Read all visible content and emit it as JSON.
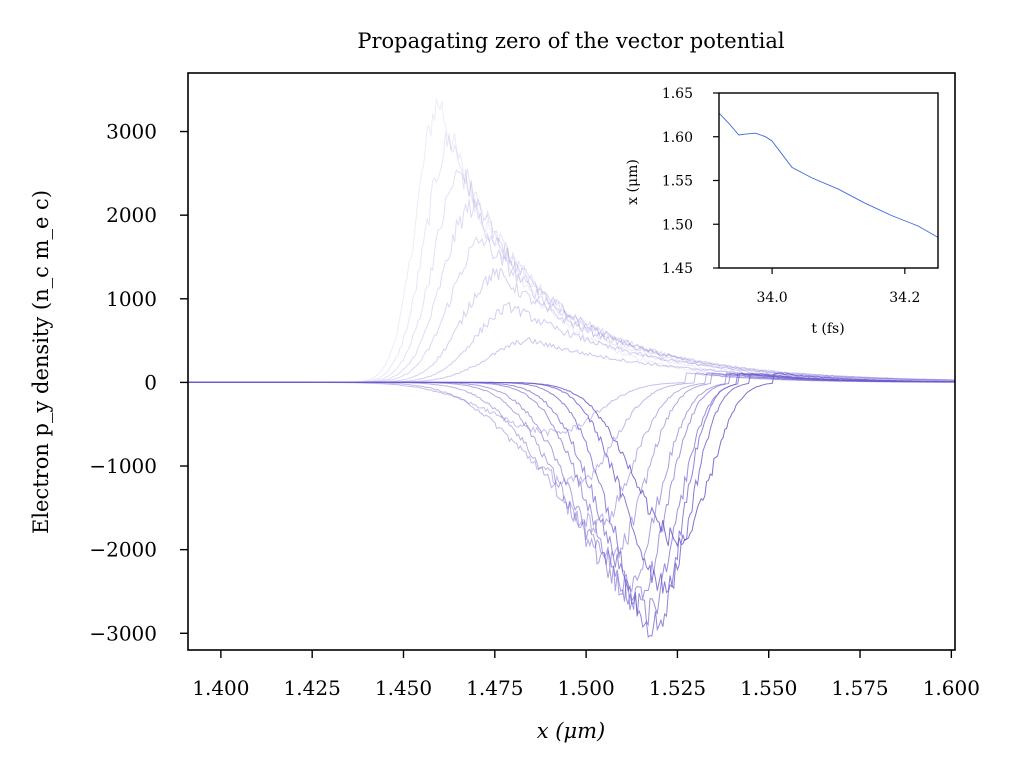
{
  "chart_data": [
    {
      "type": "line",
      "title": "Propagating zero of the vector potential",
      "xlabel": "x (μm)",
      "ylabel": "Electron p_y density (n_c m_e c)",
      "xlim": [
        1.391,
        1.601
      ],
      "ylim": [
        -3200,
        3700
      ],
      "xticks": [
        1.4,
        1.425,
        1.45,
        1.475,
        1.5,
        1.525,
        1.55,
        1.575,
        1.6
      ],
      "xtick_labels": [
        "1.400",
        "1.425",
        "1.450",
        "1.475",
        "1.500",
        "1.525",
        "1.550",
        "1.575",
        "1.600"
      ],
      "yticks": [
        -3000,
        -2000,
        -1000,
        0,
        1000,
        2000,
        3000
      ],
      "ytick_labels": [
        "−3000",
        "−2000",
        "−1000",
        "0",
        "1000",
        "2000",
        "3000"
      ],
      "grid": false,
      "color": "#6a5acd",
      "series_count": 18,
      "series": [
        {
          "peak_x": 1.46,
          "peak_y": 3350,
          "width": 0.01,
          "opacity": 0.12
        },
        {
          "peak_x": 1.463,
          "peak_y": 2900,
          "width": 0.011,
          "opacity": 0.15
        },
        {
          "peak_x": 1.466,
          "peak_y": 2500,
          "width": 0.012,
          "opacity": 0.18
        },
        {
          "peak_x": 1.469,
          "peak_y": 2100,
          "width": 0.013,
          "opacity": 0.21
        },
        {
          "peak_x": 1.472,
          "peak_y": 1700,
          "width": 0.014,
          "opacity": 0.24
        },
        {
          "peak_x": 1.476,
          "peak_y": 1300,
          "width": 0.015,
          "opacity": 0.27
        },
        {
          "peak_x": 1.48,
          "peak_y": 900,
          "width": 0.016,
          "opacity": 0.3
        },
        {
          "peak_x": 1.485,
          "peak_y": 500,
          "width": 0.018,
          "opacity": 0.34
        },
        {
          "peak_x": 1.492,
          "peak_y": -600,
          "width": 0.014,
          "opacity": 0.38
        },
        {
          "peak_x": 1.497,
          "peak_y": -1200,
          "width": 0.013,
          "opacity": 0.42
        },
        {
          "peak_x": 1.503,
          "peak_y": -1700,
          "width": 0.012,
          "opacity": 0.47
        },
        {
          "peak_x": 1.507,
          "peak_y": -2100,
          "width": 0.011,
          "opacity": 0.52
        },
        {
          "peak_x": 1.511,
          "peak_y": -2400,
          "width": 0.011,
          "opacity": 0.57
        },
        {
          "peak_x": 1.514,
          "peak_y": -2600,
          "width": 0.01,
          "opacity": 0.62
        },
        {
          "peak_x": 1.517,
          "peak_y": -2750,
          "width": 0.01,
          "opacity": 0.68
        },
        {
          "peak_x": 1.519,
          "peak_y": -2900,
          "width": 0.009,
          "opacity": 0.74
        },
        {
          "peak_x": 1.522,
          "peak_y": -2400,
          "width": 0.009,
          "opacity": 0.8
        },
        {
          "peak_x": 1.526,
          "peak_y": -1900,
          "width": 0.01,
          "opacity": 0.86
        }
      ]
    },
    {
      "type": "line",
      "title": "",
      "xlabel": "t (fs)",
      "ylabel": "x (μm)",
      "xlim": [
        33.92,
        34.25
      ],
      "ylim": [
        1.45,
        1.65
      ],
      "xticks": [
        34.0,
        34.2
      ],
      "xtick_labels": [
        "34.0",
        "34.2"
      ],
      "yticks": [
        1.45,
        1.5,
        1.55,
        1.6,
        1.65
      ],
      "ytick_labels": [
        "1.45",
        "1.50",
        "1.55",
        "1.60",
        "1.65"
      ],
      "grid": false,
      "color": "#4169e1",
      "x": [
        33.92,
        33.935,
        33.95,
        33.96,
        33.975,
        33.99,
        34.0,
        34.015,
        34.03,
        34.06,
        34.1,
        34.14,
        34.18,
        34.22,
        34.25
      ],
      "y": [
        1.627,
        1.615,
        1.602,
        1.603,
        1.604,
        1.6,
        1.595,
        1.58,
        1.565,
        1.553,
        1.54,
        1.524,
        1.51,
        1.498,
        1.485
      ]
    }
  ]
}
